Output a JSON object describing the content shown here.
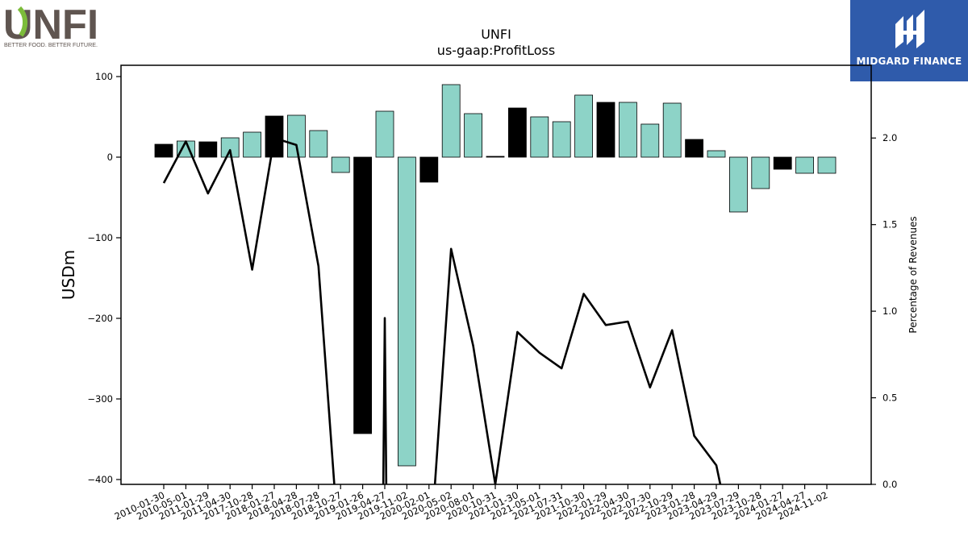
{
  "header": {
    "title": "UNFI",
    "subtitle": "us-gaap:ProfitLoss"
  },
  "logos": {
    "left_brand": "UNFI",
    "left_tagline": "BETTER FOOD. BETTER FUTURE.",
    "right_brand": "MIDGARD FINANCE"
  },
  "colors": {
    "positive_bar": "#8dd3c7",
    "highlight_bar": "#000000",
    "line": "#000000",
    "logo_dark": "#5f5550",
    "logo_green": "#7cbc3a",
    "logo_blue": "#2f5bab"
  },
  "chart_data": {
    "type": "bar",
    "title": "UNFI",
    "subtitle": "us-gaap:ProfitLoss",
    "ylabel": "USDm",
    "y2label": "Percentage of Revenues",
    "ylim": [
      -406,
      114
    ],
    "y2lim": [
      0.0,
      2.42
    ],
    "yticks": [
      100,
      0,
      -100,
      -200,
      -300,
      -400
    ],
    "y2ticks": [
      "0.0",
      "0.5",
      "1.0",
      "1.5",
      "2.0"
    ],
    "categories": [
      "2010-01-30",
      "2010-05-01",
      "2011-01-29",
      "2011-04-30",
      "2017-10-28",
      "2018-01-27",
      "2018-04-28",
      "2018-07-28",
      "2018-10-27",
      "2019-01-26",
      "2019-04-27",
      "2019-11-02",
      "2020-02-01",
      "2020-05-02",
      "2020-08-01",
      "2020-10-31",
      "2021-01-30",
      "2021-05-01",
      "2021-07-31",
      "2021-10-30",
      "2022-01-29",
      "2022-04-30",
      "2022-07-30",
      "2022-10-29",
      "2023-01-28",
      "2023-04-29",
      "2023-07-29",
      "2023-10-28",
      "2024-01-27",
      "2024-04-27",
      "2024-11-02"
    ],
    "series": [
      {
        "type": "bar",
        "values": [
          16,
          20,
          19,
          24,
          31,
          51,
          52,
          33,
          -19,
          -343,
          57,
          -383,
          -31,
          90,
          54,
          1,
          61,
          50,
          44,
          77,
          68,
          68,
          41,
          67,
          22,
          8,
          -68,
          -39,
          -15,
          -20,
          -20
        ],
        "highlight": [
          true,
          false,
          true,
          false,
          false,
          true,
          false,
          false,
          false,
          true,
          false,
          false,
          true,
          false,
          false,
          true,
          true,
          false,
          false,
          false,
          true,
          false,
          false,
          false,
          true,
          false,
          false,
          false,
          true,
          false,
          false
        ]
      },
      {
        "type": "line",
        "axis": "right",
        "values": [
          1.74,
          1.98,
          1.68,
          1.93,
          1.24,
          2.0,
          1.96,
          1.26,
          -0.5,
          null,
          0.96,
          null,
          -0.5,
          1.36,
          0.8,
          0.0,
          0.88,
          0.76,
          0.67,
          1.1,
          0.92,
          0.94,
          0.56,
          0.89,
          0.28,
          0.11,
          -0.5,
          null,
          null,
          null,
          null
        ]
      }
    ]
  }
}
